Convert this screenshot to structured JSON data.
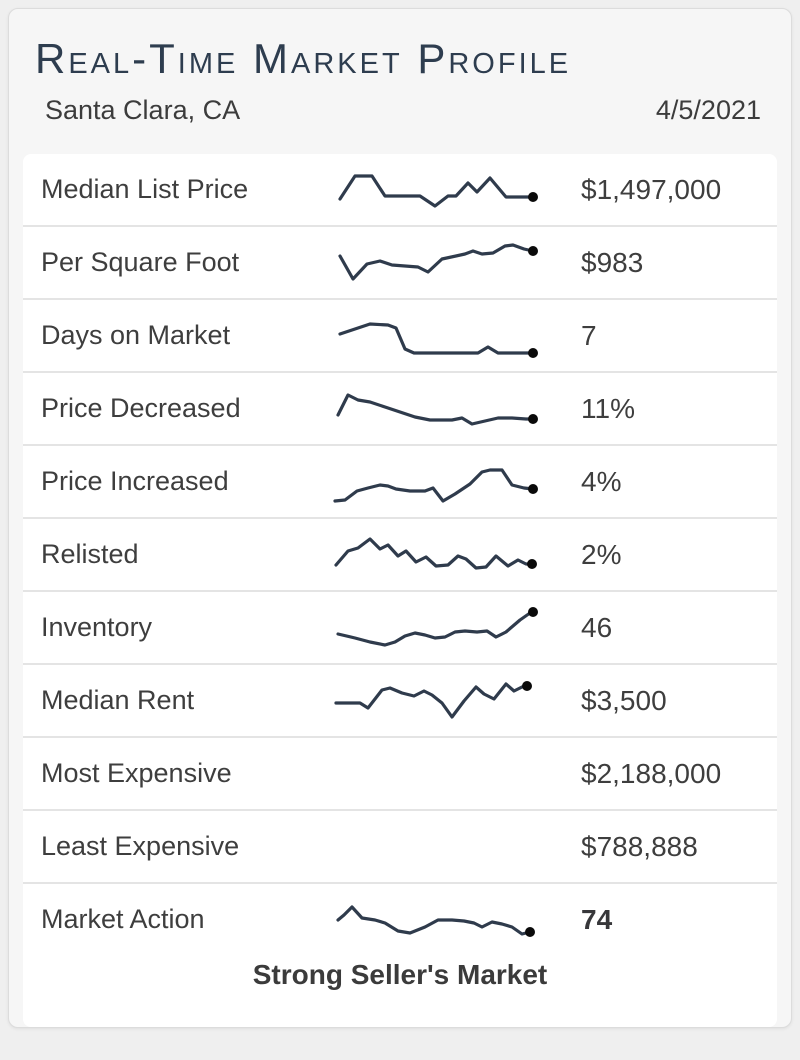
{
  "header": {
    "title": "Real-Time Market Profile",
    "location": "Santa Clara, CA",
    "date": "4/5/2021"
  },
  "rows": [
    {
      "label": "Median List Price",
      "value": "$1,497,000",
      "bold": false,
      "sparkline": [
        [
          10,
          33
        ],
        [
          25,
          10
        ],
        [
          42,
          10
        ],
        [
          55,
          30
        ],
        [
          90,
          30
        ],
        [
          105,
          40
        ],
        [
          118,
          30
        ],
        [
          126,
          30
        ],
        [
          138,
          17
        ],
        [
          147,
          26
        ],
        [
          160,
          12
        ],
        [
          176,
          31
        ],
        [
          196,
          31
        ],
        [
          203,
          31
        ]
      ]
    },
    {
      "label": "Per Square Foot",
      "value": "$983",
      "bold": false,
      "sparkline": [
        [
          10,
          17
        ],
        [
          23,
          40
        ],
        [
          37,
          25
        ],
        [
          50,
          22
        ],
        [
          62,
          26
        ],
        [
          88,
          28
        ],
        [
          98,
          33
        ],
        [
          112,
          20
        ],
        [
          135,
          15
        ],
        [
          143,
          12
        ],
        [
          152,
          15
        ],
        [
          163,
          14
        ],
        [
          175,
          7
        ],
        [
          183,
          6
        ],
        [
          194,
          10
        ],
        [
          203,
          12
        ]
      ]
    },
    {
      "label": "Days on Market",
      "value": "7",
      "bold": false,
      "sparkline": [
        [
          10,
          22
        ],
        [
          40,
          12
        ],
        [
          58,
          13
        ],
        [
          66,
          16
        ],
        [
          75,
          37
        ],
        [
          84,
          41
        ],
        [
          148,
          41
        ],
        [
          158,
          35
        ],
        [
          168,
          41
        ],
        [
          203,
          41
        ]
      ]
    },
    {
      "label": "Price Decreased",
      "value": "11%",
      "bold": false,
      "sparkline": [
        [
          8,
          30
        ],
        [
          18,
          10
        ],
        [
          28,
          15
        ],
        [
          40,
          17
        ],
        [
          55,
          22
        ],
        [
          70,
          27
        ],
        [
          85,
          32
        ],
        [
          100,
          35
        ],
        [
          122,
          35
        ],
        [
          132,
          33
        ],
        [
          142,
          39
        ],
        [
          155,
          36
        ],
        [
          168,
          33
        ],
        [
          182,
          33
        ],
        [
          196,
          34
        ],
        [
          203,
          34
        ]
      ]
    },
    {
      "label": "Price Increased",
      "value": "4%",
      "bold": false,
      "sparkline": [
        [
          5,
          43
        ],
        [
          15,
          42
        ],
        [
          27,
          33
        ],
        [
          38,
          30
        ],
        [
          50,
          27
        ],
        [
          58,
          28
        ],
        [
          66,
          31
        ],
        [
          80,
          33
        ],
        [
          95,
          33
        ],
        [
          103,
          30
        ],
        [
          113,
          43
        ],
        [
          125,
          36
        ],
        [
          140,
          26
        ],
        [
          152,
          14
        ],
        [
          160,
          12
        ],
        [
          172,
          12
        ],
        [
          182,
          27
        ],
        [
          194,
          30
        ],
        [
          203,
          31
        ]
      ]
    },
    {
      "label": "Relisted",
      "value": "2%",
      "bold": false,
      "sparkline": [
        [
          6,
          34
        ],
        [
          18,
          20
        ],
        [
          28,
          17
        ],
        [
          40,
          8
        ],
        [
          50,
          18
        ],
        [
          58,
          14
        ],
        [
          68,
          25
        ],
        [
          76,
          20
        ],
        [
          86,
          31
        ],
        [
          96,
          26
        ],
        [
          106,
          35
        ],
        [
          118,
          34
        ],
        [
          128,
          25
        ],
        [
          136,
          28
        ],
        [
          146,
          37
        ],
        [
          156,
          36
        ],
        [
          166,
          25
        ],
        [
          178,
          35
        ],
        [
          188,
          29
        ],
        [
          196,
          33
        ],
        [
          202,
          33
        ]
      ]
    },
    {
      "label": "Inventory",
      "value": "46",
      "bold": false,
      "sparkline": [
        [
          8,
          30
        ],
        [
          25,
          34
        ],
        [
          40,
          38
        ],
        [
          55,
          41
        ],
        [
          65,
          38
        ],
        [
          75,
          32
        ],
        [
          85,
          29
        ],
        [
          95,
          31
        ],
        [
          105,
          34
        ],
        [
          115,
          33
        ],
        [
          125,
          28
        ],
        [
          135,
          27
        ],
        [
          147,
          28
        ],
        [
          157,
          27
        ],
        [
          166,
          33
        ],
        [
          176,
          28
        ],
        [
          190,
          16
        ],
        [
          200,
          9
        ],
        [
          203,
          8
        ]
      ]
    },
    {
      "label": "Median Rent",
      "value": "$3,500",
      "bold": false,
      "sparkline": [
        [
          6,
          26
        ],
        [
          30,
          26
        ],
        [
          38,
          31
        ],
        [
          52,
          13
        ],
        [
          60,
          11
        ],
        [
          72,
          16
        ],
        [
          84,
          19
        ],
        [
          94,
          14
        ],
        [
          102,
          18
        ],
        [
          112,
          26
        ],
        [
          122,
          40
        ],
        [
          134,
          24
        ],
        [
          146,
          10
        ],
        [
          154,
          17
        ],
        [
          164,
          22
        ],
        [
          176,
          7
        ],
        [
          184,
          14
        ],
        [
          192,
          10
        ],
        [
          197,
          9
        ]
      ]
    },
    {
      "label": "Most Expensive",
      "value": "$2,188,000",
      "bold": false,
      "sparkline": null
    },
    {
      "label": "Least Expensive",
      "value": "$788,888",
      "bold": false,
      "sparkline": null
    },
    {
      "label": "Market Action",
      "value": "74",
      "bold": true,
      "sparkline": [
        [
          8,
          24
        ],
        [
          14,
          19
        ],
        [
          22,
          11
        ],
        [
          32,
          22
        ],
        [
          45,
          24
        ],
        [
          55,
          27
        ],
        [
          68,
          35
        ],
        [
          80,
          37
        ],
        [
          95,
          31
        ],
        [
          108,
          24
        ],
        [
          122,
          24
        ],
        [
          134,
          25
        ],
        [
          144,
          27
        ],
        [
          152,
          31
        ],
        [
          162,
          26
        ],
        [
          172,
          28
        ],
        [
          182,
          31
        ],
        [
          192,
          38
        ],
        [
          200,
          36
        ]
      ]
    }
  ],
  "footer": {
    "market_status": "Strong Seller's Market"
  },
  "colors": {
    "title": "#2e3d4f",
    "text": "#3e3e3e",
    "sparkline_stroke": "#2f3b4c",
    "sparkline_dot": "#0a0a0a",
    "row_background": "#ffffff",
    "card_background": "#f6f6f6",
    "page_background": "#efefef",
    "divider": "#e4e4e4"
  }
}
